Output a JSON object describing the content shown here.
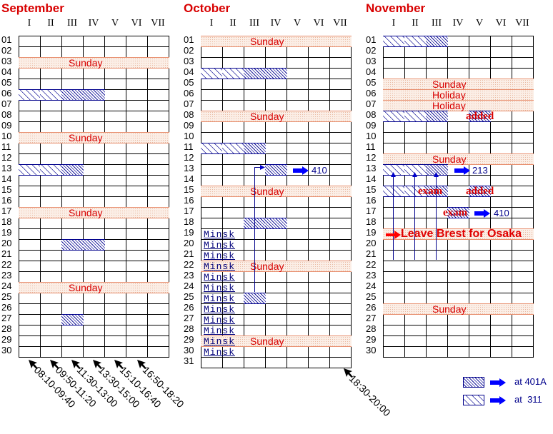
{
  "columns": [
    "I",
    "II",
    "III",
    "IV",
    "V",
    "VI",
    "VII"
  ],
  "colors": {
    "title": "#d80000",
    "hatch": "#1a1a9a",
    "sunday_fill": "#fbeee6",
    "arrow": "#0000ff",
    "leave_arrow": "#ff0000"
  },
  "months": [
    {
      "name": "September",
      "days": 30,
      "sundays": [
        {
          "day": 3,
          "label": "Sunday"
        },
        {
          "day": 10,
          "label": "Sunday"
        },
        {
          "day": 17,
          "label": "Sunday"
        },
        {
          "day": 24,
          "label": "Sunday"
        }
      ],
      "sessions": [
        {
          "day": 6,
          "col": 1,
          "room": "311"
        },
        {
          "day": 6,
          "col": 2,
          "room": "311"
        },
        {
          "day": 6,
          "col": 3,
          "room": "401A"
        },
        {
          "day": 6,
          "col": 4,
          "room": "401A"
        },
        {
          "day": 13,
          "col": 1,
          "room": "311"
        },
        {
          "day": 13,
          "col": 2,
          "room": "311"
        },
        {
          "day": 13,
          "col": 3,
          "room": "401A"
        },
        {
          "day": 20,
          "col": 3,
          "room": "401A"
        },
        {
          "day": 20,
          "col": 4,
          "room": "401A"
        },
        {
          "day": 27,
          "col": 3,
          "room": "401A"
        }
      ]
    },
    {
      "name": "October",
      "days": 31,
      "sundays": [
        {
          "day": 1,
          "label": "Sunday"
        },
        {
          "day": 8,
          "label": "Sunday"
        },
        {
          "day": 15,
          "label": "Sunday"
        },
        {
          "day": 22,
          "label": "Sunday"
        },
        {
          "day": 29,
          "label": "Sunday"
        }
      ],
      "sessions": [
        {
          "day": 4,
          "col": 1,
          "room": "311"
        },
        {
          "day": 4,
          "col": 2,
          "room": "311"
        },
        {
          "day": 4,
          "col": 3,
          "room": "401A"
        },
        {
          "day": 4,
          "col": 4,
          "room": "401A"
        },
        {
          "day": 11,
          "col": 1,
          "room": "311"
        },
        {
          "day": 11,
          "col": 2,
          "room": "311"
        },
        {
          "day": 11,
          "col": 3,
          "room": "401A"
        },
        {
          "day": 13,
          "col": 4,
          "room": "401A"
        },
        {
          "day": 18,
          "col": 3,
          "room": "401A"
        },
        {
          "day": 18,
          "col": 4,
          "room": "401A"
        },
        {
          "day": 25,
          "col": 3,
          "room": "401A"
        }
      ],
      "minsk_label": "Minsk",
      "minsk_days": [
        19,
        20,
        21,
        22,
        23,
        24,
        25,
        26,
        27,
        28,
        29,
        30
      ],
      "moved_note": "410"
    },
    {
      "name": "November",
      "days": 30,
      "sundays": [
        {
          "day": 5,
          "label": "Sunday"
        },
        {
          "day": 6,
          "label": "Holiday"
        },
        {
          "day": 7,
          "label": "Holiday"
        },
        {
          "day": 12,
          "label": "Sunday"
        },
        {
          "day": 19,
          "label": ""
        },
        {
          "day": 26,
          "label": "Sunday"
        }
      ],
      "sessions": [
        {
          "day": 1,
          "col": 1,
          "room": "311"
        },
        {
          "day": 1,
          "col": 2,
          "room": "311"
        },
        {
          "day": 1,
          "col": 3,
          "room": "401A"
        },
        {
          "day": 8,
          "col": 1,
          "room": "311"
        },
        {
          "day": 8,
          "col": 2,
          "room": "311"
        },
        {
          "day": 8,
          "col": 3,
          "room": "401A"
        },
        {
          "day": 8,
          "col": 5,
          "room": "401A"
        },
        {
          "day": 13,
          "col": 1,
          "room": "311"
        },
        {
          "day": 13,
          "col": 2,
          "room": "311"
        },
        {
          "day": 13,
          "col": 3,
          "room": "401A"
        },
        {
          "day": 15,
          "col": 1,
          "room": "311"
        },
        {
          "day": 15,
          "col": 2,
          "room": "311"
        },
        {
          "day": 15,
          "col": 3,
          "room": "401A"
        },
        {
          "day": 15,
          "col": 5,
          "room": "401A"
        },
        {
          "day": 17,
          "col": 4,
          "room": "401A"
        }
      ],
      "notes": {
        "added_8": "added",
        "exam_15": "exam",
        "added_15": "added",
        "exam_17": "exam",
        "room_13": "213",
        "room_17": "410",
        "leave": "Leave Brest for Osaka"
      }
    }
  ],
  "time_slots": [
    "08:10-09:40",
    "09:50-11:20",
    "11:30-13:00",
    "13:30-15:00",
    "15:10-16:40",
    "16:50-18:20",
    "18:30-20:00"
  ],
  "legend": [
    {
      "pattern": "dense-hatch",
      "label": "at 401A"
    },
    {
      "pattern": "wide-hatch",
      "label": "at  311"
    }
  ]
}
